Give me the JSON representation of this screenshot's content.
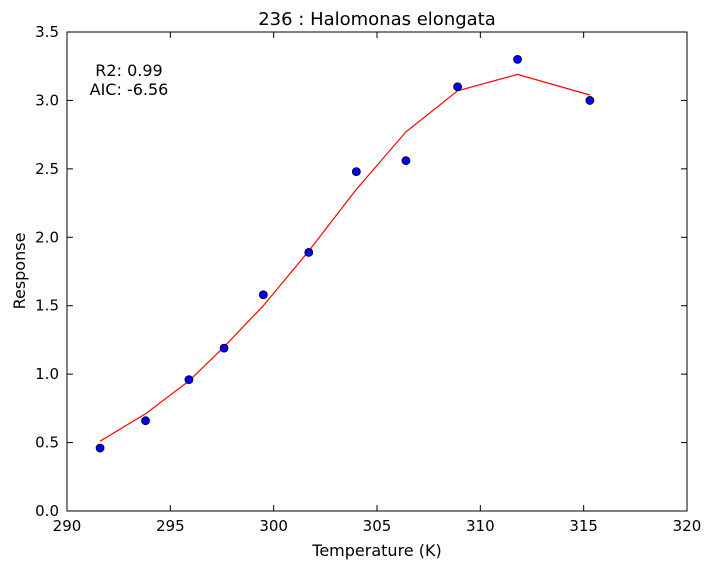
{
  "chart_data": {
    "type": "scatter",
    "title": "236 : Halomonas elongata",
    "xlabel": "Temperature (K)",
    "ylabel": "Response",
    "xlim": [
      290,
      320
    ],
    "ylim": [
      0.0,
      3.5
    ],
    "xticks": [
      "290",
      "295",
      "300",
      "305",
      "310",
      "315",
      "320"
    ],
    "yticks": [
      "0.0",
      "0.5",
      "1.0",
      "1.5",
      "2.0",
      "2.5",
      "3.0",
      "3.5"
    ],
    "grid": false,
    "annotations": [
      "R2: 0.99",
      "AIC: -6.56"
    ],
    "series": [
      {
        "type": "scatter",
        "color": "#0000ff",
        "x": [
          291.6,
          293.8,
          295.9,
          297.6,
          299.5,
          301.7,
          304.0,
          306.4,
          308.9,
          311.8,
          315.3
        ],
        "y": [
          0.46,
          0.66,
          0.96,
          1.19,
          1.58,
          1.89,
          2.48,
          2.56,
          3.1,
          3.3,
          3.0
        ]
      },
      {
        "type": "line",
        "color": "#ff0000",
        "x": [
          291.6,
          293.8,
          295.9,
          297.6,
          299.5,
          301.7,
          304.0,
          306.4,
          308.9,
          311.8,
          315.3
        ],
        "y": [
          0.51,
          0.71,
          0.95,
          1.2,
          1.5,
          1.9,
          2.35,
          2.77,
          3.07,
          3.19,
          3.04
        ]
      }
    ]
  }
}
